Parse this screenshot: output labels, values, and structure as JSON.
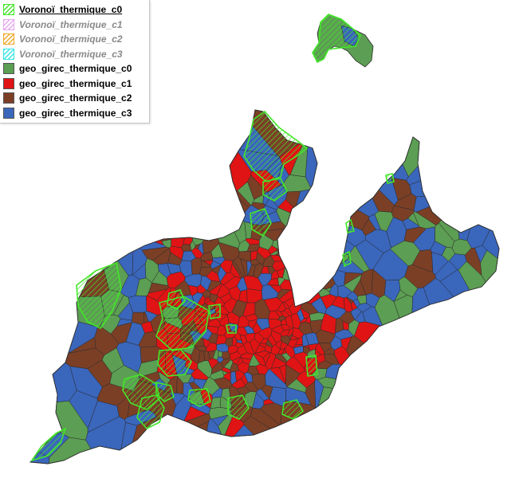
{
  "legend": {
    "items": [
      {
        "label": "Voronoï_thermique_c0",
        "style": "hatch",
        "color": "#44e62a",
        "active": true
      },
      {
        "label": "Voronoï_thermique_c1",
        "style": "hatch",
        "color": "#e8a6ef",
        "active": false
      },
      {
        "label": "Voronoï_thermique_c2",
        "style": "hatch",
        "color": "#f0a92c",
        "active": false
      },
      {
        "label": "Voronoï_thermique_c3",
        "style": "hatch",
        "color": "#39e3e7",
        "active": false
      },
      {
        "label": "geo_girec_thermique_c0",
        "style": "fill",
        "color": "#5c9e53",
        "active": true
      },
      {
        "label": "geo_girec_thermique_c1",
        "style": "fill",
        "color": "#e01414",
        "active": true
      },
      {
        "label": "geo_girec_thermique_c2",
        "style": "fill",
        "color": "#7b3f26",
        "active": true
      },
      {
        "label": "geo_girec_thermique_c3",
        "style": "fill",
        "color": "#3a66bc",
        "active": true
      }
    ]
  },
  "map": {
    "class_colors": {
      "c0": "#5c9e53",
      "c1": "#e01414",
      "c2": "#7b3f26",
      "c3": "#3a66bc",
      "voronoi_c0": "#44e62a",
      "border": "#2b2b2b"
    }
  }
}
